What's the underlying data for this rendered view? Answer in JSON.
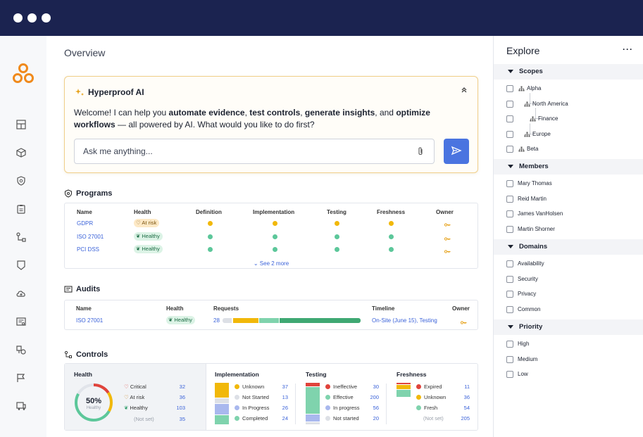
{
  "window": {
    "controls": [
      "dot-1",
      "dot-2",
      "dot-3"
    ]
  },
  "nav": {
    "logo": "hyperproof-logo",
    "icons": [
      "dashboard-icon",
      "cube-icon",
      "shield-icon",
      "clipboard-icon",
      "workflow-icon",
      "bookmark-icon",
      "cloud-icon",
      "report-icon",
      "risk-icon",
      "flag-icon",
      "truck-icon"
    ]
  },
  "page": {
    "title": "Overview"
  },
  "ai": {
    "title": "Hyperproof AI",
    "message": {
      "p1": "Welcome! I can help you ",
      "b1": "automate evidence",
      "p2": ", ",
      "b2": "test controls",
      "p3": ", ",
      "b3": "generate insights",
      "p4": ", and ",
      "b4": "optimize workflows",
      "p5": " — all powered by AI. What would you like to do first?"
    },
    "input_placeholder": "Ask me anything..."
  },
  "programs": {
    "title": "Programs",
    "columns": [
      "Name",
      "Health",
      "Definition",
      "Implementation",
      "Testing",
      "Freshness",
      "Owner"
    ],
    "rows": [
      {
        "name": "GDPR",
        "health": "At risk",
        "definition": "#f1b80a",
        "implementation": "#f1b80a",
        "testing": "#f1b80a",
        "freshness": "#f1b80a"
      },
      {
        "name": "ISO 27001",
        "health": "Healthy",
        "definition": "#5cc79a",
        "implementation": "#5cc79a",
        "testing": "#5cc79a",
        "freshness": "#5cc79a"
      },
      {
        "name": "PCI DSS",
        "health": "Healthy",
        "definition": "#5cc79a",
        "implementation": "#5cc79a",
        "testing": "#5cc79a",
        "freshness": "#5cc79a"
      }
    ],
    "see_more": "See 2 more"
  },
  "audits": {
    "title": "Audits",
    "columns": [
      "Name",
      "Health",
      "Requests",
      "Timeline",
      "Owner"
    ],
    "rows": [
      {
        "name": "ISO 27001",
        "health": "Healthy",
        "requests": "28",
        "timeline": "On-Site (June 15), Testing"
      }
    ],
    "request_bar": [
      {
        "label": "not-started",
        "fraction": 0.07,
        "color": "#dde0e6"
      },
      {
        "label": "in-progress",
        "fraction": 0.19,
        "color": "#f1b80a"
      },
      {
        "label": "review",
        "fraction": 0.15,
        "color": "#7fd3ad"
      },
      {
        "label": "complete",
        "fraction": 0.59,
        "color": "#3fa873"
      }
    ]
  },
  "controls": {
    "title": "Controls",
    "health": {
      "title": "Health",
      "percent": "50%",
      "percent_label": "Healthy",
      "items": [
        {
          "label": "Critical",
          "value": "32",
          "icon": "critical-icon",
          "color": "#e0433b"
        },
        {
          "label": "At risk",
          "value": "36",
          "icon": "heart-icon",
          "color": "#c77e14"
        },
        {
          "label": "Healthy",
          "value": "103",
          "icon": "handshake-icon",
          "color": "#2f9c6a"
        },
        {
          "label": "(Not set)",
          "value": "35",
          "icon": "",
          "color": "#9aa0ab"
        }
      ]
    },
    "implementation": {
      "title": "Implementation",
      "items": [
        {
          "label": "Unknown",
          "value": "37",
          "color": "#f1b80a"
        },
        {
          "label": "Not Started",
          "value": "13",
          "color": "#dde0e6"
        },
        {
          "label": "In Progress",
          "value": "26",
          "color": "#a9b8ee"
        },
        {
          "label": "Completed",
          "value": "24",
          "color": "#7fd3ad"
        }
      ]
    },
    "testing": {
      "title": "Testing",
      "items": [
        {
          "label": "Ineffective",
          "value": "30",
          "color": "#e0433b"
        },
        {
          "label": "Effective",
          "value": "200",
          "color": "#7fd3ad"
        },
        {
          "label": "In progress",
          "value": "56",
          "color": "#a9b8ee"
        },
        {
          "label": "Not started",
          "value": "20",
          "color": "#dde0e6"
        }
      ]
    },
    "freshness": {
      "title": "Freshness",
      "items": [
        {
          "label": "Expired",
          "value": "11",
          "color": "#e0433b"
        },
        {
          "label": "Unknown",
          "value": "36",
          "color": "#f1b80a"
        },
        {
          "label": "Fresh",
          "value": "54",
          "color": "#7fd3ad"
        },
        {
          "label": "(Not set)",
          "value": "205",
          "color": ""
        }
      ]
    }
  },
  "explore": {
    "title": "Explore",
    "more": "···",
    "scopes": {
      "label": "Scopes",
      "items": [
        "Alpha",
        "North America",
        "Finance",
        "Europe",
        "Beta"
      ]
    },
    "members": {
      "label": "Members",
      "items": [
        "Mary Thomas",
        "Reid Martin",
        "James VanHolsen",
        "Martin Shorner"
      ]
    },
    "domains": {
      "label": "Domains",
      "items": [
        "Availability",
        "Security",
        "Privacy",
        "Common"
      ]
    },
    "priority": {
      "label": "Priority",
      "items": [
        "High",
        "Medium",
        "Low"
      ]
    }
  }
}
